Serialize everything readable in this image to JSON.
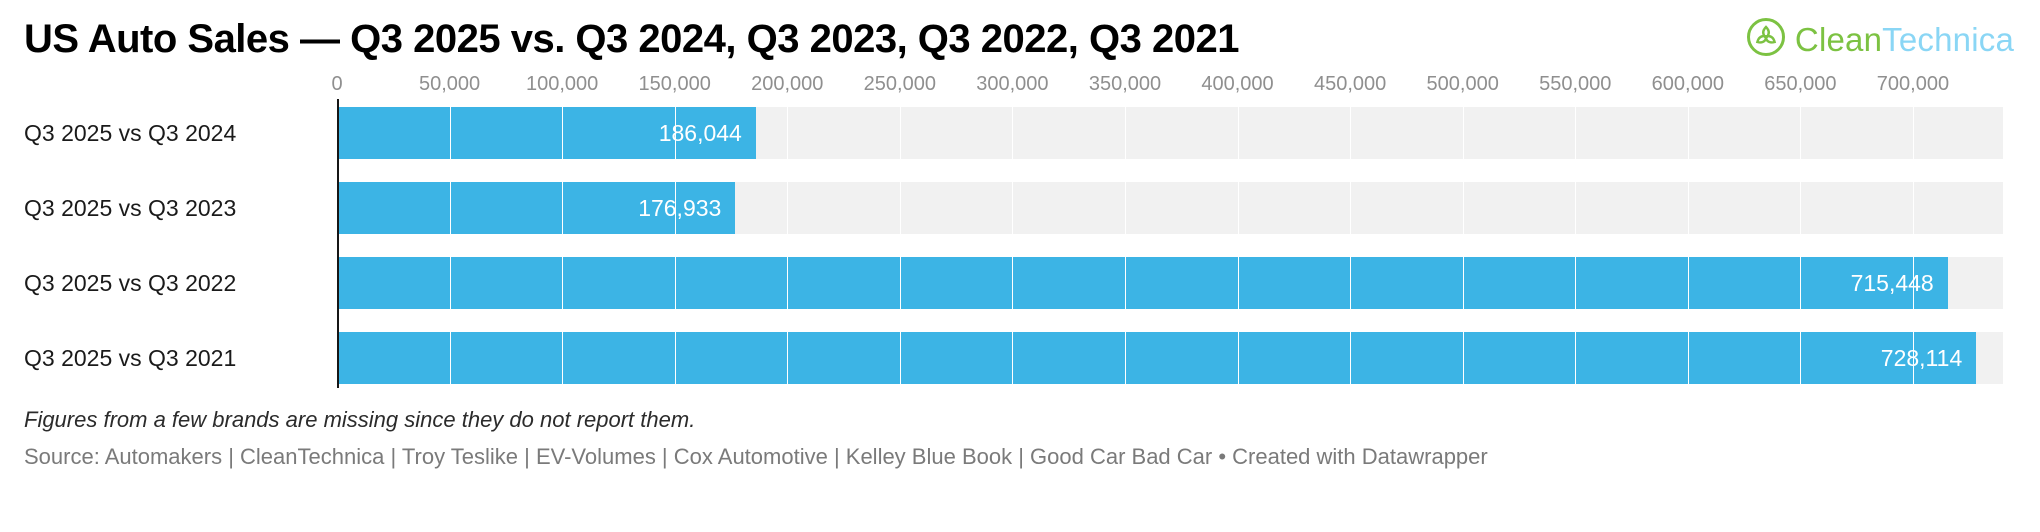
{
  "title": "US Auto Sales — Q3 2025 vs. Q3 2024, Q3 2023, Q3 2022, Q3 2021",
  "logo": {
    "clean": "Clean",
    "technica": "Technica",
    "green": "#7cc242",
    "blue": "#8ad6f5"
  },
  "chart_data": {
    "type": "bar",
    "orientation": "horizontal",
    "title": "US Auto Sales — Q3 2025 vs. Q3 2024, Q3 2023, Q3 2022, Q3 2021",
    "categories": [
      "Q3 2025 vs Q3 2024",
      "Q3 2025 vs Q3 2023",
      "Q3 2025 vs Q3 2022",
      "Q3 2025 vs Q3 2021"
    ],
    "values": [
      186044,
      176933,
      715448,
      728114
    ],
    "value_labels": [
      "186,044",
      "176,933",
      "715,448",
      "728,114"
    ],
    "x_tick_values": [
      0,
      50000,
      100000,
      150000,
      200000,
      250000,
      300000,
      350000,
      400000,
      450000,
      500000,
      550000,
      600000,
      650000,
      700000
    ],
    "x_tick_labels": [
      "0",
      "50,000",
      "100,000",
      "150,000",
      "200,000",
      "250,000",
      "300,000",
      "350,000",
      "400,000",
      "450,000",
      "500,000",
      "550,000",
      "600,000",
      "650,000",
      "700,000"
    ],
    "xlim": [
      0,
      740000
    ],
    "bar_color": "#3cb4e5",
    "row_band_color": "#f1f1f1",
    "grid": true,
    "legend": "none",
    "value_labels_position": "inside-end",
    "value_label_color": "#ffffff"
  },
  "footnote": "Figures from a few brands are missing since they do not report them.",
  "source": "Source: Automakers | CleanTechnica | Troy Teslike | EV-Volumes | Cox Automotive | Kelley Blue Book | Good Car Bad Car • Created with Datawrapper"
}
